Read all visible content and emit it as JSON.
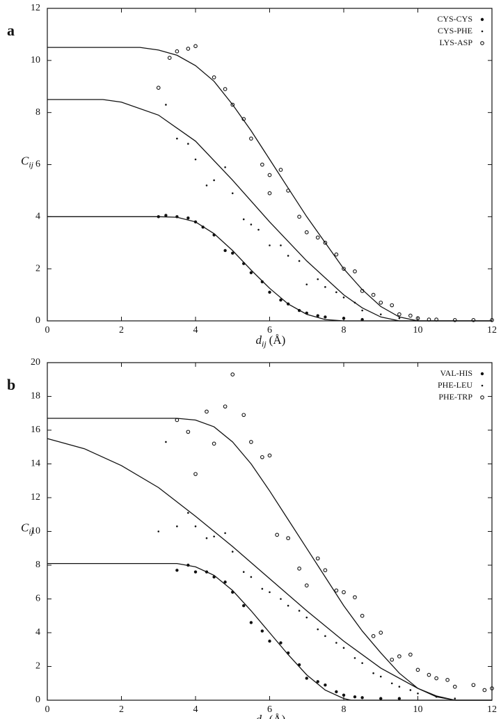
{
  "chart_data": [
    {
      "type": "scatter",
      "panel_label": "a",
      "xlabel": {
        "symbol": "d",
        "subscript": "ij",
        "unit": "(Å)"
      },
      "ylabel": {
        "symbol": "C",
        "subscript": "ij"
      },
      "xlim": [
        0,
        12
      ],
      "ylim": [
        0,
        12
      ],
      "xticks": [
        0,
        2,
        4,
        6,
        8,
        10,
        12
      ],
      "yticks": [
        0,
        2,
        4,
        6,
        8,
        10,
        12
      ],
      "legend": "upper right",
      "series": [
        {
          "name": "CYS-CYS",
          "marker": "dot",
          "color": "#111111",
          "x": [
            3.0,
            3.2,
            3.5,
            3.8,
            4.0,
            4.2,
            4.5,
            4.8,
            5.0,
            5.3,
            5.5,
            5.8,
            6.0,
            6.3,
            6.5,
            6.8,
            7.0,
            7.3,
            7.5,
            8.0,
            8.5
          ],
          "values": [
            4.0,
            4.05,
            4.0,
            3.95,
            3.8,
            3.6,
            3.3,
            2.7,
            2.6,
            2.2,
            1.85,
            1.5,
            1.1,
            0.8,
            0.65,
            0.4,
            0.3,
            0.2,
            0.15,
            0.1,
            0.05
          ],
          "fit_x": [
            0,
            3,
            3.5,
            4,
            4.5,
            5,
            5.5,
            6,
            6.5,
            7,
            7.5,
            8,
            12
          ],
          "fit_values": [
            4,
            4,
            3.98,
            3.8,
            3.35,
            2.7,
            1.95,
            1.25,
            0.65,
            0.25,
            0.05,
            0,
            0
          ]
        },
        {
          "name": "CYS-PHE",
          "marker": "small-dot",
          "color": "#111111",
          "x": [
            3.2,
            3.5,
            3.8,
            4.0,
            4.3,
            4.5,
            4.8,
            5.0,
            5.3,
            5.5,
            5.7,
            6.0,
            6.3,
            6.5,
            6.8,
            7.0,
            7.3,
            7.5,
            7.8,
            8.0,
            8.3,
            8.5,
            9.0,
            9.5
          ],
          "values": [
            8.3,
            7.0,
            6.8,
            6.2,
            5.2,
            5.4,
            5.9,
            4.9,
            3.9,
            3.7,
            3.5,
            2.9,
            2.9,
            2.5,
            2.3,
            1.4,
            1.6,
            1.3,
            1.1,
            0.9,
            0.7,
            0.4,
            0.25,
            0.1
          ],
          "fit_x": [
            0,
            1.5,
            2,
            3,
            4,
            5,
            6,
            7,
            8,
            8.5,
            9,
            9.5,
            12
          ],
          "fit_values": [
            8.5,
            8.5,
            8.4,
            7.9,
            6.9,
            5.4,
            3.8,
            2.3,
            1.0,
            0.5,
            0.15,
            0,
            0
          ]
        },
        {
          "name": "LYS-ASP",
          "marker": "circle",
          "color": "#111111",
          "x": [
            3.0,
            3.3,
            3.5,
            3.8,
            4.0,
            4.5,
            4.8,
            5.0,
            5.3,
            5.5,
            5.8,
            6.0,
            6.0,
            6.3,
            6.5,
            6.8,
            7.0,
            7.3,
            7.5,
            7.8,
            8.0,
            8.3,
            8.5,
            8.8,
            9.0,
            9.3,
            9.5,
            9.8,
            10.0,
            10.3,
            10.5,
            11.0,
            11.5,
            12.0
          ],
          "values": [
            8.95,
            10.1,
            10.35,
            10.45,
            10.55,
            9.35,
            8.9,
            8.3,
            7.75,
            7.0,
            6.0,
            4.9,
            5.6,
            5.8,
            5.0,
            4.0,
            3.4,
            3.2,
            3.0,
            2.55,
            2.0,
            1.9,
            1.15,
            1.0,
            0.7,
            0.6,
            0.25,
            0.2,
            0.1,
            0.05,
            0.05,
            0.03,
            0.03,
            0.03
          ],
          "fit_x": [
            0,
            2.5,
            3,
            3.5,
            4,
            4.5,
            5,
            5.5,
            6,
            6.5,
            7,
            7.5,
            8,
            8.5,
            9,
            9.5,
            10,
            12
          ],
          "fit_values": [
            10.5,
            10.5,
            10.4,
            10.2,
            9.8,
            9.2,
            8.3,
            7.3,
            6.2,
            5.1,
            4.0,
            3.0,
            2.0,
            1.2,
            0.55,
            0.15,
            0,
            0
          ]
        }
      ]
    },
    {
      "type": "scatter",
      "panel_label": "b",
      "xlabel": {
        "symbol": "d",
        "subscript": "ij",
        "unit": "(Å)"
      },
      "ylabel": {
        "symbol": "C",
        "subscript": "ij"
      },
      "xlim": [
        0,
        12
      ],
      "ylim": [
        0,
        20
      ],
      "xticks": [
        0,
        2,
        4,
        6,
        8,
        10,
        12
      ],
      "yticks": [
        0,
        2,
        4,
        6,
        8,
        10,
        12,
        14,
        16,
        18,
        20
      ],
      "legend": "upper right",
      "series": [
        {
          "name": "VAL-HIS",
          "marker": "dot",
          "color": "#111111",
          "x": [
            3.5,
            3.8,
            4.0,
            4.3,
            4.5,
            4.8,
            5.0,
            5.3,
            5.5,
            5.8,
            6.0,
            6.3,
            6.5,
            6.8,
            7.0,
            7.3,
            7.5,
            7.8,
            8.0,
            8.3,
            8.5,
            9.0,
            9.5
          ],
          "values": [
            7.7,
            8.0,
            7.6,
            7.6,
            7.3,
            7.0,
            6.4,
            5.6,
            4.6,
            4.1,
            3.5,
            3.4,
            2.8,
            2.1,
            1.3,
            1.1,
            0.9,
            0.5,
            0.3,
            0.2,
            0.15,
            0.1,
            0.1
          ],
          "fit_x": [
            0,
            3.5,
            4,
            4.5,
            5,
            5.5,
            6,
            6.5,
            7,
            7.5,
            8,
            8.2,
            12
          ],
          "fit_values": [
            8.1,
            8.1,
            7.9,
            7.4,
            6.5,
            5.3,
            4.0,
            2.7,
            1.5,
            0.6,
            0.1,
            0,
            0
          ]
        },
        {
          "name": "PHE-LEU",
          "marker": "small-dot",
          "color": "#111111",
          "x": [
            3.0,
            3.2,
            3.5,
            3.8,
            4.0,
            4.3,
            4.5,
            4.8,
            5.0,
            5.3,
            5.5,
            5.8,
            6.0,
            6.3,
            6.5,
            6.8,
            7.0,
            7.3,
            7.5,
            7.8,
            8.0,
            8.3,
            8.5,
            8.8,
            9.0,
            9.3,
            9.5,
            9.8,
            10.0,
            10.5,
            11.0
          ],
          "values": [
            10.0,
            15.3,
            10.3,
            11.1,
            10.3,
            9.6,
            9.7,
            9.9,
            8.8,
            7.6,
            7.3,
            6.6,
            6.4,
            6.0,
            5.6,
            5.3,
            4.9,
            4.2,
            3.8,
            3.4,
            3.1,
            2.5,
            2.2,
            1.6,
            1.4,
            1.0,
            0.8,
            0.6,
            0.4,
            0.2,
            0.1
          ],
          "fit_x": [
            0,
            1,
            2,
            3,
            4,
            5,
            6,
            7,
            8,
            9,
            10,
            10.5,
            11,
            12
          ],
          "fit_values": [
            15.5,
            14.9,
            13.9,
            12.6,
            10.9,
            9.1,
            7.2,
            5.3,
            3.5,
            1.9,
            0.7,
            0.25,
            0,
            0
          ]
        },
        {
          "name": "PHE-TRP",
          "marker": "circle",
          "color": "#111111",
          "x": [
            3.5,
            3.8,
            4.0,
            4.3,
            4.5,
            4.8,
            5.0,
            5.3,
            5.5,
            5.8,
            6.0,
            6.2,
            6.5,
            6.8,
            7.0,
            7.3,
            7.5,
            7.8,
            8.0,
            8.3,
            8.5,
            8.8,
            9.0,
            9.3,
            9.5,
            9.8,
            10.0,
            10.3,
            10.5,
            10.8,
            11.0,
            11.5,
            11.8,
            12.0
          ],
          "values": [
            16.6,
            15.9,
            13.4,
            17.1,
            15.2,
            17.4,
            19.3,
            16.9,
            15.3,
            14.4,
            14.5,
            9.8,
            9.6,
            7.8,
            6.8,
            8.4,
            7.7,
            6.5,
            6.4,
            6.1,
            5.0,
            3.8,
            4.0,
            2.4,
            2.6,
            2.7,
            1.8,
            1.5,
            1.3,
            1.2,
            0.8,
            0.9,
            0.6,
            0.7
          ],
          "fit_x": [
            0,
            3.5,
            4,
            4.5,
            5,
            5.5,
            6,
            6.5,
            7,
            7.5,
            8,
            8.5,
            9,
            9.5,
            10,
            10.5,
            11,
            12
          ],
          "fit_values": [
            16.7,
            16.7,
            16.6,
            16.2,
            15.3,
            14.0,
            12.4,
            10.7,
            9.0,
            7.3,
            5.6,
            4.1,
            2.8,
            1.6,
            0.7,
            0.2,
            0,
            0
          ]
        }
      ]
    }
  ]
}
